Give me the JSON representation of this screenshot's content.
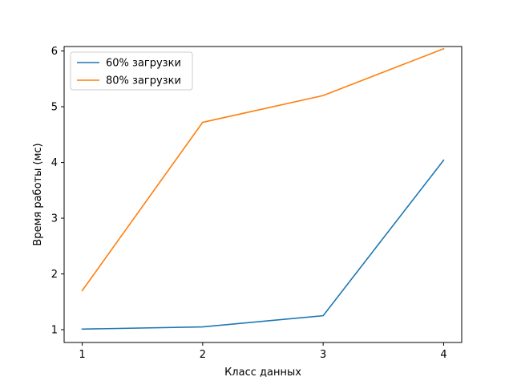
{
  "chart_data": {
    "type": "line",
    "title": "",
    "xlabel": "Класс данных",
    "ylabel": "Время работы (мс)",
    "x": [
      1,
      2,
      3,
      4
    ],
    "xticks": [
      "1",
      "2",
      "3",
      "4"
    ],
    "yticks": [
      "1",
      "2",
      "3",
      "4",
      "5",
      "6"
    ],
    "xlim": [
      0.85,
      4.15
    ],
    "ylim": [
      0.77,
      6.08
    ],
    "grid": false,
    "legend_position": "top-left",
    "series": [
      {
        "name": "60% загрузки",
        "color": "#1f77b4",
        "values": [
          1.01,
          1.05,
          1.25,
          4.04
        ]
      },
      {
        "name": "80% загрузки",
        "color": "#ff7f0e",
        "values": [
          1.7,
          4.72,
          5.2,
          6.04
        ]
      }
    ]
  }
}
